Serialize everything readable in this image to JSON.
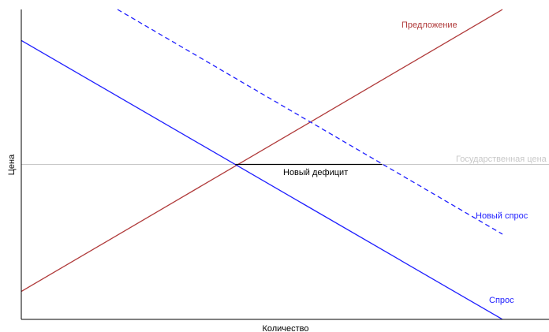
{
  "chart_data": {
    "type": "line",
    "xlabel": "Количество",
    "ylabel": "Цена",
    "xlim": [
      0,
      10
    ],
    "ylim": [
      0,
      10
    ],
    "grid": false,
    "lines": [
      {
        "key": "demand",
        "name": "Спрос",
        "color": "#1f1fff",
        "style": "solid",
        "points": [
          [
            0,
            9
          ],
          [
            10,
            0
          ]
        ]
      },
      {
        "key": "new_demand",
        "name": "Новый спрос",
        "color": "#1f1fff",
        "style": "dashed",
        "points": [
          [
            2,
            10
          ],
          [
            10,
            2.75
          ]
        ]
      },
      {
        "key": "supply",
        "name": "Предложение",
        "color": "#b03a3a",
        "style": "solid",
        "points": [
          [
            0,
            0.9
          ],
          [
            10,
            10
          ]
        ]
      },
      {
        "key": "gov_price",
        "name": "Государственная цена",
        "color": "#c8c8c8",
        "style": "solid",
        "points": [
          [
            0,
            5
          ],
          [
            11,
            5
          ]
        ]
      },
      {
        "key": "shortage",
        "name": "Новый дефицит",
        "color": "#000000",
        "style": "solid",
        "points": [
          [
            4.45,
            5
          ],
          [
            7.5,
            5
          ]
        ]
      }
    ],
    "annotations": {
      "supply": "Предложение",
      "gov_price": "Государственная цена",
      "shortage": "Новый дефицит",
      "new_demand": "Новый спрос",
      "demand": "Спрос"
    }
  }
}
